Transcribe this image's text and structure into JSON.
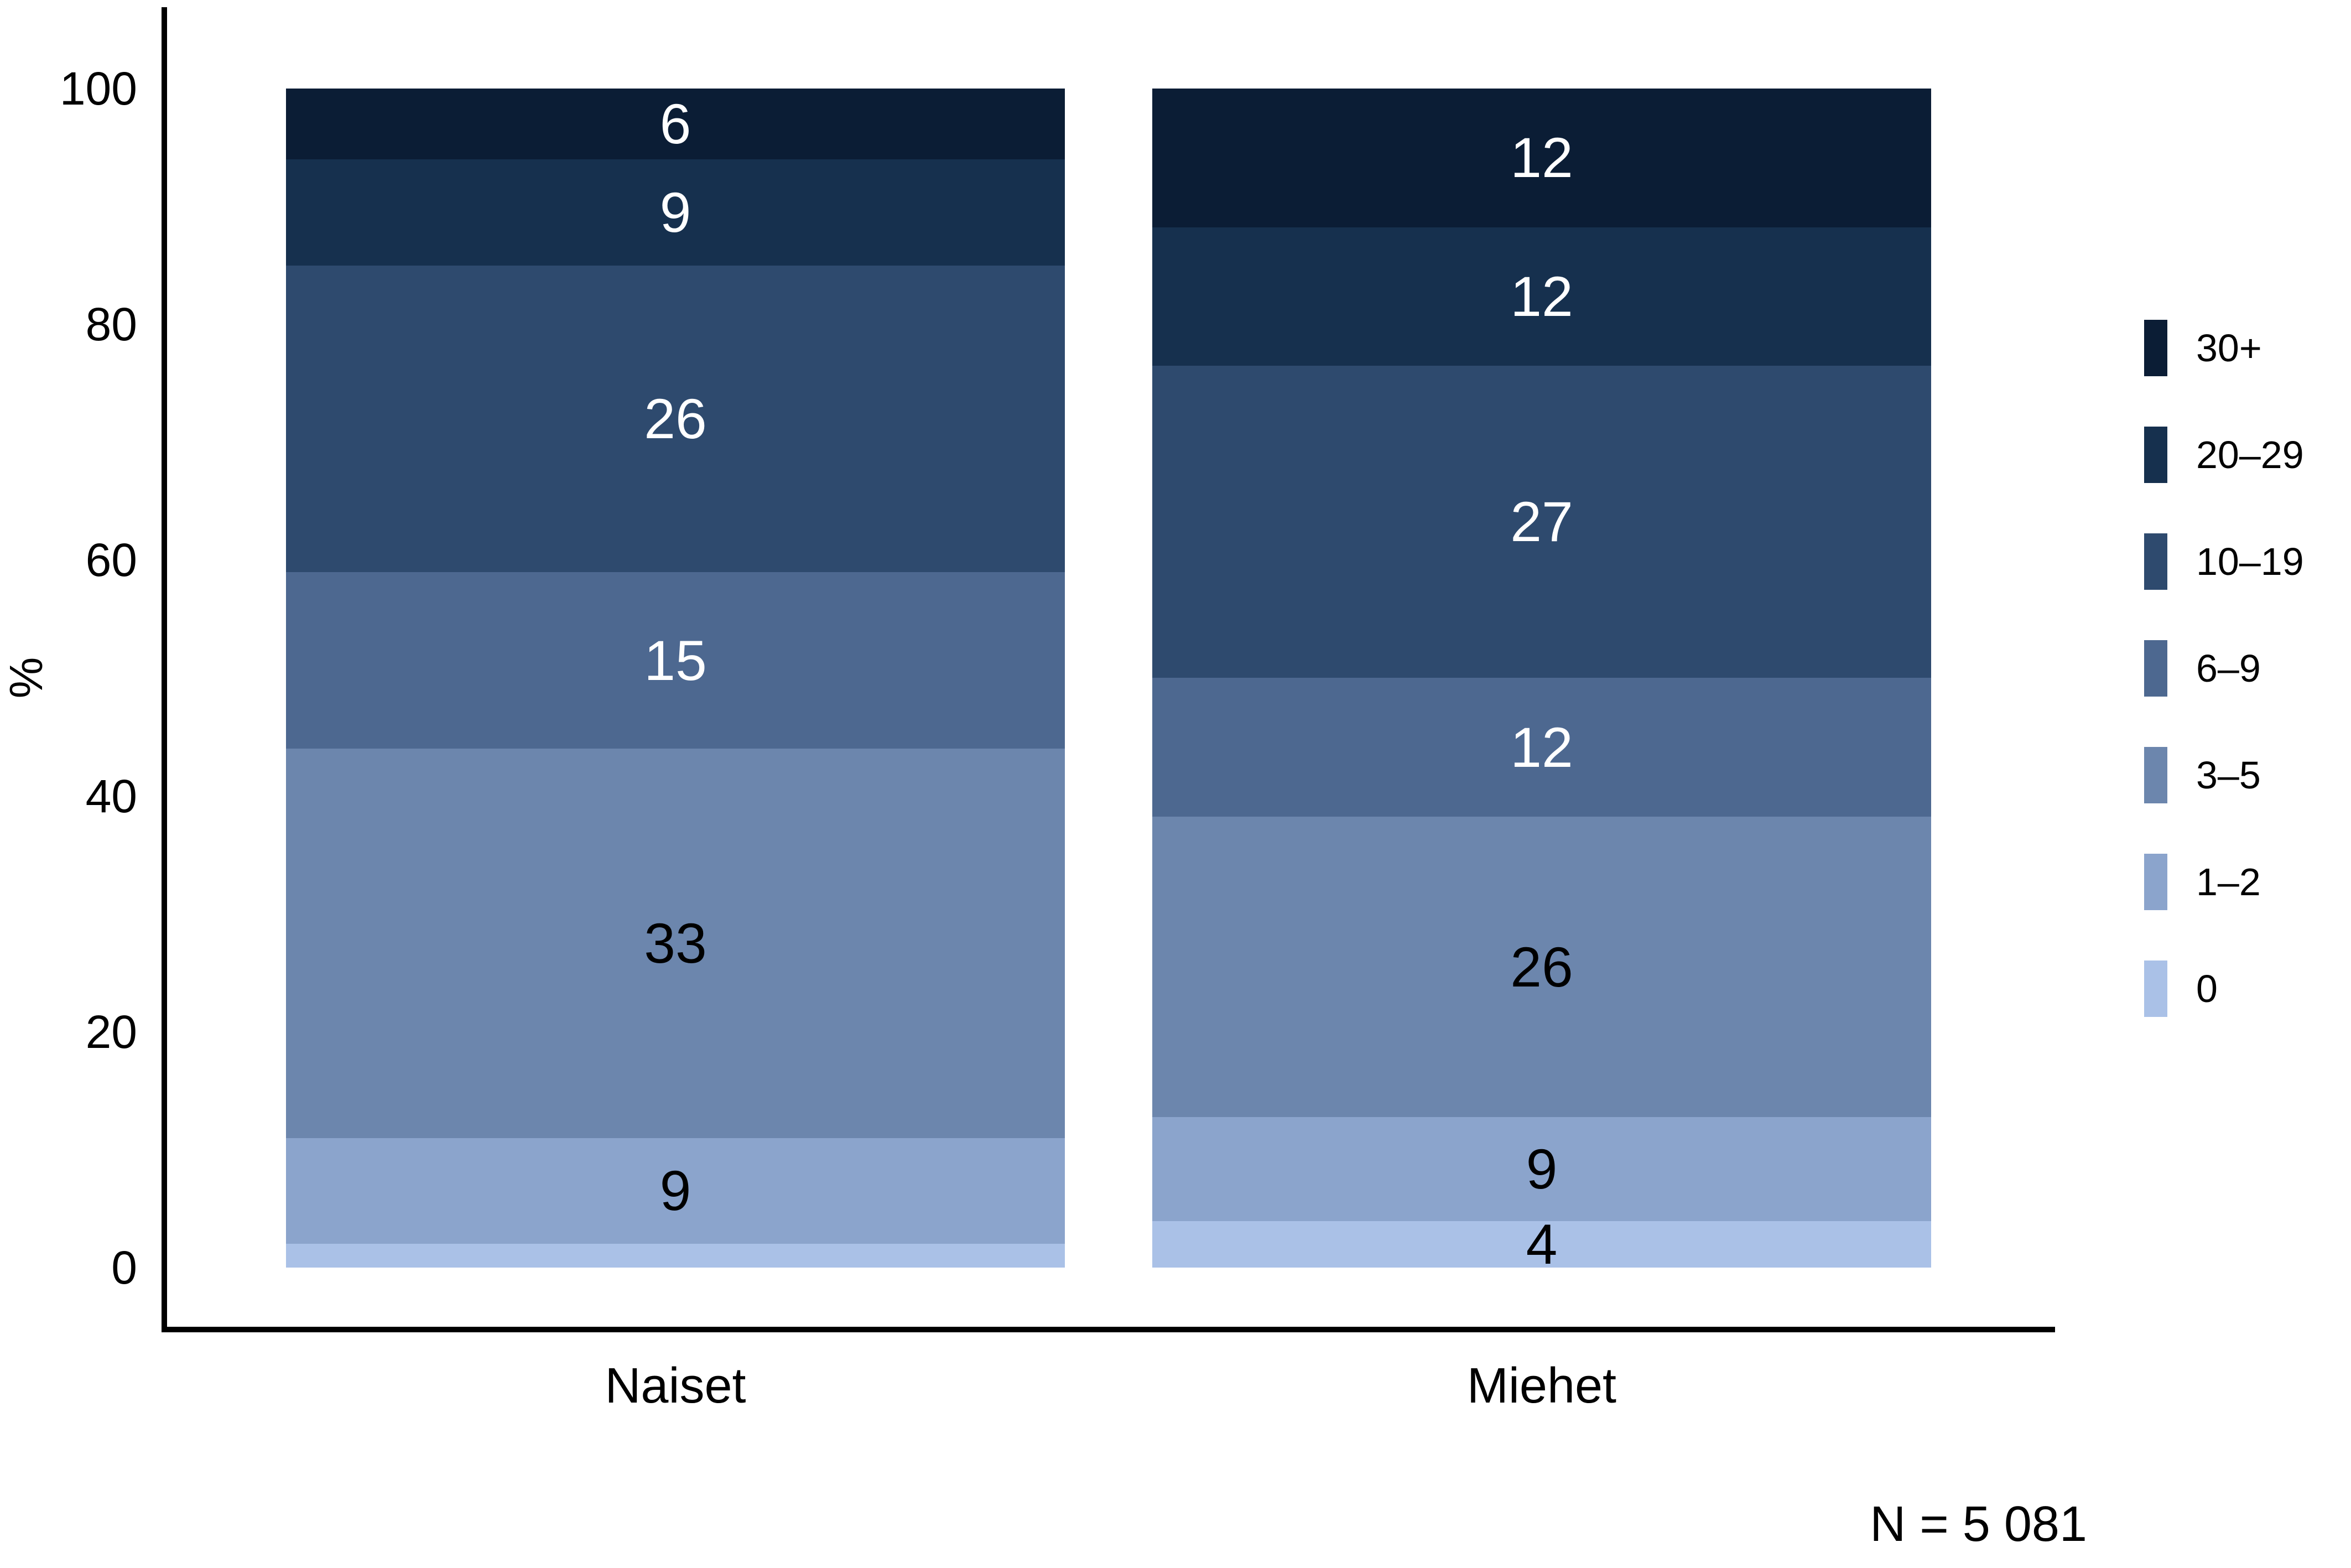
{
  "chart_data": {
    "type": "bar",
    "stacked": true,
    "orientation": "vertical",
    "categories": [
      "Naiset",
      "Miehet"
    ],
    "series": [
      {
        "name": "30+",
        "color": "#0B1D35",
        "values": [
          6,
          12
        ],
        "labels": [
          "6",
          "12"
        ],
        "label_color": "#FFFFFF"
      },
      {
        "name": "20–29",
        "color": "#16304E",
        "values": [
          9,
          12
        ],
        "labels": [
          "9",
          "12"
        ],
        "label_color": "#FFFFFF"
      },
      {
        "name": "10–19",
        "color": "#2E4A6E",
        "values": [
          26,
          27
        ],
        "labels": [
          "26",
          "27"
        ],
        "label_color": "#FFFFFF"
      },
      {
        "name": "6–9",
        "color": "#4D6890",
        "values": [
          15,
          12
        ],
        "labels": [
          "15",
          "12"
        ],
        "label_color": "#FFFFFF"
      },
      {
        "name": "3–5",
        "color": "#6C86AD",
        "values": [
          33,
          26
        ],
        "labels": [
          "33",
          "26"
        ],
        "label_color": "#000000"
      },
      {
        "name": "1–2",
        "color": "#8BA4CC",
        "values": [
          9,
          9
        ],
        "labels": [
          "9",
          "9"
        ],
        "label_color": "#000000"
      },
      {
        "name": "0",
        "color": "#AAC1E7",
        "values": [
          2,
          4
        ],
        "labels": [
          "",
          "4"
        ],
        "label_color": "#000000"
      }
    ],
    "ylabel": "%",
    "ylim": [
      0,
      100
    ],
    "yticks": [
      0,
      20,
      40,
      60,
      80,
      100
    ],
    "grid": false,
    "legend_position": "right",
    "legend_order_top_to_bottom": [
      "30+",
      "20–29",
      "10–19",
      "6–9",
      "3–5",
      "1–2",
      "0"
    ],
    "annotation": "N = 5 081",
    "axis_color": "#000000",
    "background_color": "#FFFFFF"
  }
}
